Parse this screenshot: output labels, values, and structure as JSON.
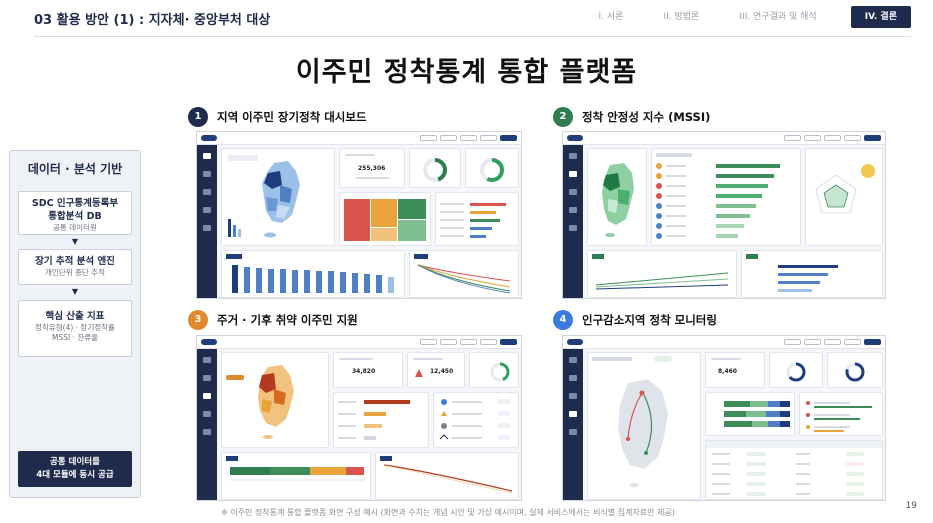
{
  "header": {
    "section_num": "03",
    "section_title": "활용 방안 (1) : 지자체· 중앙부처 대상",
    "nav": [
      "I. 서론",
      "II. 방법론",
      "III. 연구결과 및 해석",
      "IV. 결론"
    ],
    "active_nav": "IV. 결론"
  },
  "main_title": "이주민 정착통계 통합 플랫폼",
  "sidebar": {
    "heading": "데이터 · 분석 기반",
    "boxes": [
      {
        "title": "SDC 인구통계등록부\n통합분석 DB",
        "sub": "공통 데이터원"
      },
      {
        "title": "장기 추적 분석 엔진",
        "sub": "개인단위 종단 추적"
      },
      {
        "title": "핵심 산출 지표",
        "sub": "정착유형(4) · 장기정착률\nMSSI · 잔류율"
      }
    ],
    "arrow": "▼",
    "cta": [
      "공통 데이터를",
      "4대 모듈에 동시 공급"
    ]
  },
  "modules": [
    {
      "num": "1",
      "label": "지역 이주민 장기정착 대시보드",
      "color": "#1f2b4d"
    },
    {
      "num": "2",
      "label": "정착 안정성 지수 (MSSI)",
      "color": "#2e7d4f"
    },
    {
      "num": "3",
      "label": "주거 · 기후 취약 이주민 지원",
      "color": "#e08a2c"
    },
    {
      "num": "4",
      "label": "인구감소지역 정착 모니터링",
      "color": "#3b7be0"
    }
  ],
  "dash_kpis": {
    "m1_value": "255,306",
    "m3_value1": "34,820",
    "m3_value2": "12,450",
    "m4_value": "8,460"
  },
  "colors": {
    "navy": "#1f2b4d",
    "green": "#2e7d4f",
    "orange": "#e08a2c",
    "blue": "#3b7be0",
    "red": "#c0392b"
  },
  "footnote": "※ 이주민 정착통계 통합 플랫폼 화면 구성 예시 (화면과 수치는 개념 시안 및 가상 예시이며, 실제 서비스에서는 비식별 집계자료만 제공)",
  "page_number": "19"
}
